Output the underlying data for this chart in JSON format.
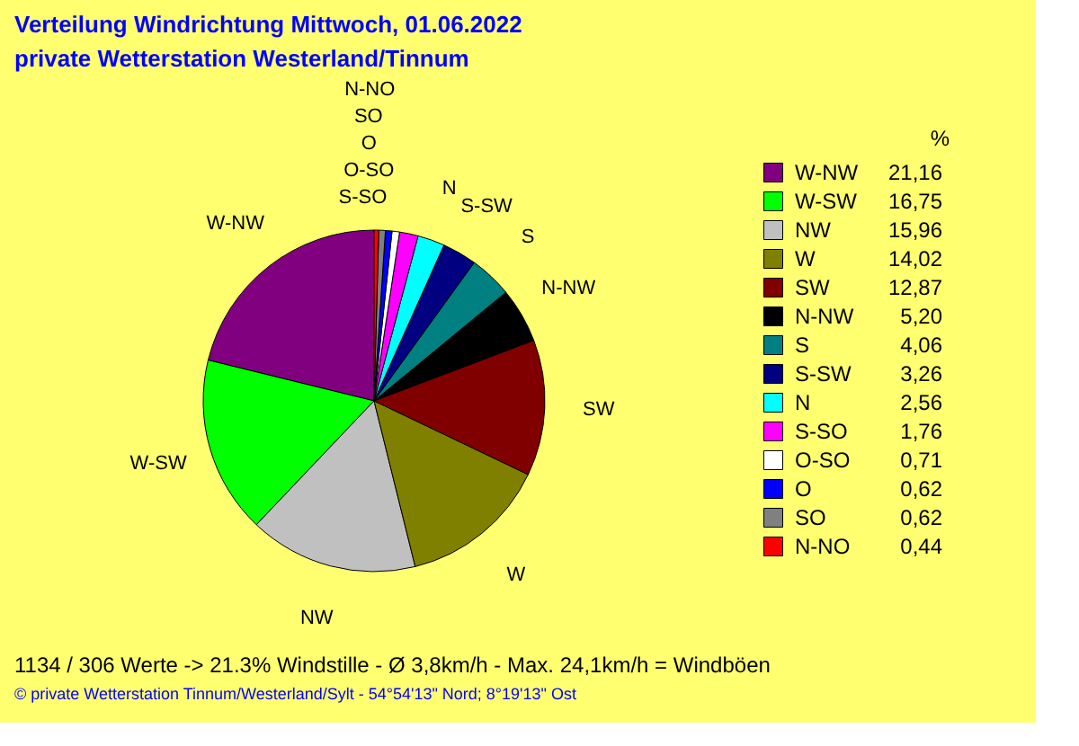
{
  "chart_data": {
    "type": "pie",
    "title": "Verteilung Windrichtung   Mittwoch, 01.06.2022",
    "subtitle": "private Wetterstation Westerland/Tinnum",
    "categories": [
      "W-NW",
      "W-SW",
      "NW",
      "W",
      "SW",
      "N-NW",
      "S",
      "S-SW",
      "N",
      "S-SO",
      "O-SO",
      "O",
      "SO",
      "N-NO"
    ],
    "values": [
      21.16,
      16.75,
      15.96,
      14.02,
      12.87,
      5.2,
      4.06,
      3.26,
      2.56,
      1.76,
      0.71,
      0.62,
      0.62,
      0.44
    ],
    "value_labels": [
      "21,16",
      "16,75",
      "15,96",
      "14,02",
      "12,87",
      "5,20",
      "4,06",
      "3,26",
      "2,56",
      "1,76",
      "0,71",
      "0,62",
      "0,62",
      "0,44"
    ],
    "colors": [
      "#800080",
      "#00ff00",
      "#c0c0c0",
      "#808000",
      "#800000",
      "#000000",
      "#008080",
      "#000080",
      "#00ffff",
      "#ff00ff",
      "#ffffff",
      "#0000ff",
      "#808080",
      "#ff0000"
    ],
    "legend_title": "%",
    "legend": "right",
    "annotations": [
      "1134 / 306 Werte  -> 21.3% Windstille   -   Ø 3,8km/h  -  Max. 24,1km/h = Windböen",
      "© private Wetterstation Tinnum/Westerland/Sylt   -   54°54'13\" Nord; 8°19'13\" Ost"
    ]
  }
}
